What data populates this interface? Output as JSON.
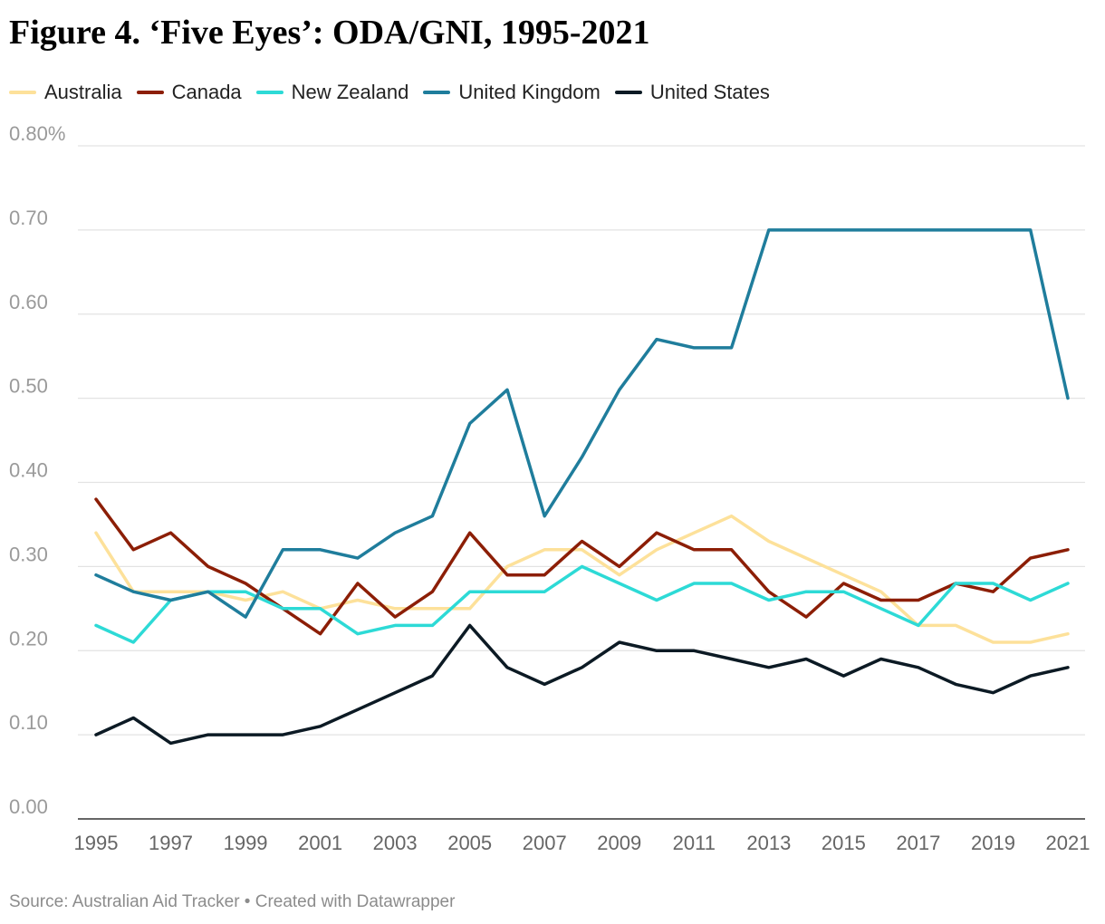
{
  "chart_data": {
    "type": "line",
    "title": "Figure 4. ‘Five Eyes’: ODA/GNI, 1995-2021",
    "x": [
      1995,
      1996,
      1997,
      1998,
      1999,
      2000,
      2001,
      2002,
      2003,
      2004,
      2005,
      2006,
      2007,
      2008,
      2009,
      2010,
      2011,
      2012,
      2013,
      2014,
      2015,
      2016,
      2017,
      2018,
      2019,
      2020,
      2021
    ],
    "x_tick_labels": [
      "1995",
      "1997",
      "1999",
      "2001",
      "2003",
      "2005",
      "2007",
      "2009",
      "2011",
      "2013",
      "2015",
      "2017",
      "2019",
      "2021"
    ],
    "y_tick_labels": [
      "0.00",
      "0.10",
      "0.20",
      "0.30",
      "0.40",
      "0.50",
      "0.60",
      "0.70",
      "0.80%"
    ],
    "ylim": [
      0,
      0.8
    ],
    "xlim": [
      1995,
      2021
    ],
    "grid": true,
    "legend_position": "top",
    "series": [
      {
        "name": "Australia",
        "color": "#fde19a",
        "values": [
          0.34,
          0.27,
          0.27,
          0.27,
          0.26,
          0.27,
          0.25,
          0.26,
          0.25,
          0.25,
          0.25,
          0.3,
          0.32,
          0.32,
          0.29,
          0.32,
          0.34,
          0.36,
          0.33,
          0.31,
          0.29,
          0.27,
          0.23,
          0.23,
          0.21,
          0.21,
          0.22
        ]
      },
      {
        "name": "Canada",
        "color": "#8c1e06",
        "values": [
          0.38,
          0.32,
          0.34,
          0.3,
          0.28,
          0.25,
          0.22,
          0.28,
          0.24,
          0.27,
          0.34,
          0.29,
          0.29,
          0.33,
          0.3,
          0.34,
          0.32,
          0.32,
          0.27,
          0.24,
          0.28,
          0.26,
          0.26,
          0.28,
          0.27,
          0.31,
          0.32
        ]
      },
      {
        "name": "New Zealand",
        "color": "#2ddad6",
        "values": [
          0.23,
          0.21,
          0.26,
          0.27,
          0.27,
          0.25,
          0.25,
          0.22,
          0.23,
          0.23,
          0.27,
          0.27,
          0.27,
          0.3,
          0.28,
          0.26,
          0.28,
          0.28,
          0.26,
          0.27,
          0.27,
          0.25,
          0.23,
          0.28,
          0.28,
          0.26,
          0.28
        ]
      },
      {
        "name": "United Kingdom",
        "color": "#1f7d9c",
        "values": [
          0.29,
          0.27,
          0.26,
          0.27,
          0.24,
          0.32,
          0.32,
          0.31,
          0.34,
          0.36,
          0.47,
          0.51,
          0.36,
          0.43,
          0.51,
          0.57,
          0.56,
          0.56,
          0.7,
          0.7,
          0.7,
          0.7,
          0.7,
          0.7,
          0.7,
          0.7,
          0.5
        ]
      },
      {
        "name": "United States",
        "color": "#0c1a24",
        "values": [
          0.1,
          0.12,
          0.09,
          0.1,
          0.1,
          0.1,
          0.11,
          0.13,
          0.15,
          0.17,
          0.23,
          0.18,
          0.16,
          0.18,
          0.21,
          0.2,
          0.2,
          0.19,
          0.18,
          0.19,
          0.17,
          0.19,
          0.18,
          0.16,
          0.15,
          0.17,
          0.18
        ]
      }
    ]
  },
  "footer": {
    "text": "Source: Australian Aid Tracker • Created with Datawrapper"
  }
}
